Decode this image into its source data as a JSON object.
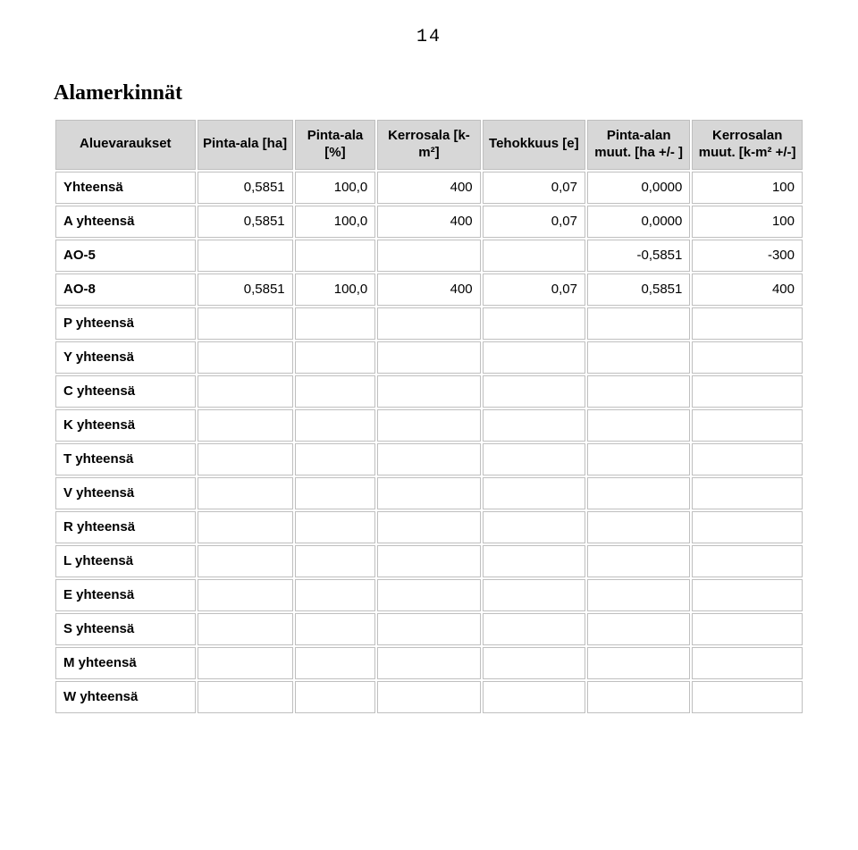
{
  "page_number": "14",
  "heading": "Alamerkinnät",
  "table": {
    "type": "table",
    "header_bg": "#d7d7d7",
    "cell_border": "#bfbfbf",
    "columns": [
      "Aluevaraukset",
      "Pinta-ala [ha]",
      "Pinta-ala [%]",
      "Kerrosala [k-m²]",
      "Tehokkuus [e]",
      "Pinta-alan muut. [ha +/- ]",
      "Kerrosalan muut. [k-m² +/-]"
    ],
    "rows": [
      {
        "label": "Yhteensä",
        "cells": [
          "0,5851",
          "100,0",
          "400",
          "0,07",
          "0,0000",
          "100"
        ]
      },
      {
        "label": "A yhteensä",
        "cells": [
          "0,5851",
          "100,0",
          "400",
          "0,07",
          "0,0000",
          "100"
        ]
      },
      {
        "label": "AO-5",
        "cells": [
          "",
          "",
          "",
          "",
          "-0,5851",
          "-300"
        ]
      },
      {
        "label": "AO-8",
        "cells": [
          "0,5851",
          "100,0",
          "400",
          "0,07",
          "0,5851",
          "400"
        ]
      },
      {
        "label": "P yhteensä",
        "cells": [
          "",
          "",
          "",
          "",
          "",
          ""
        ]
      },
      {
        "label": "Y yhteensä",
        "cells": [
          "",
          "",
          "",
          "",
          "",
          ""
        ]
      },
      {
        "label": "C yhteensä",
        "cells": [
          "",
          "",
          "",
          "",
          "",
          ""
        ]
      },
      {
        "label": "K yhteensä",
        "cells": [
          "",
          "",
          "",
          "",
          "",
          ""
        ]
      },
      {
        "label": "T yhteensä",
        "cells": [
          "",
          "",
          "",
          "",
          "",
          ""
        ]
      },
      {
        "label": "V yhteensä",
        "cells": [
          "",
          "",
          "",
          "",
          "",
          ""
        ]
      },
      {
        "label": "R yhteensä",
        "cells": [
          "",
          "",
          "",
          "",
          "",
          ""
        ]
      },
      {
        "label": "L yhteensä",
        "cells": [
          "",
          "",
          "",
          "",
          "",
          ""
        ]
      },
      {
        "label": "E yhteensä",
        "cells": [
          "",
          "",
          "",
          "",
          "",
          ""
        ]
      },
      {
        "label": "S yhteensä",
        "cells": [
          "",
          "",
          "",
          "",
          "",
          ""
        ]
      },
      {
        "label": "M yhteensä",
        "cells": [
          "",
          "",
          "",
          "",
          "",
          ""
        ]
      },
      {
        "label": "W yhteensä",
        "cells": [
          "",
          "",
          "",
          "",
          "",
          ""
        ]
      }
    ]
  }
}
